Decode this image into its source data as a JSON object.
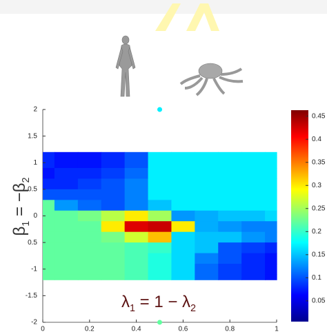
{
  "chart_data": {
    "type": "heatmap",
    "x_label": [
      "λ",
      "1",
      " = 1 − λ",
      "2"
    ],
    "y_label": [
      "β",
      "1",
      " = −β",
      "2"
    ],
    "xlim": [
      0,
      1
    ],
    "ylim": [
      -2,
      2
    ],
    "xticks": [
      0,
      0.2,
      0.4,
      0.6,
      0.8,
      1
    ],
    "yticks": [
      2,
      1.5,
      1,
      {
        "value": 0.5,
        "label": "0.5"
      },
      0,
      {
        "value": -0.5,
        "label": "0.5"
      },
      -1,
      -1.5,
      -2
    ],
    "colormap": "jet",
    "clim": [
      0.005,
      0.463
    ],
    "cticks": [
      0.05,
      0.1,
      0.15,
      0.2,
      0.25,
      0.3,
      0.35,
      0.4,
      0.45
    ],
    "x": [
      0,
      0.1,
      0.2,
      0.3,
      0.4,
      0.5,
      0.6,
      0.7,
      0.8,
      0.9,
      1
    ],
    "y": [
      1.2,
      1.0,
      0.8,
      0.6,
      0.4,
      0.2,
      0,
      -0.2,
      -0.4,
      -0.6,
      -0.8,
      -1.0,
      -1.2
    ],
    "z": [
      [
        0.08,
        0.07,
        0.07,
        0.08,
        0.1,
        0.17,
        0.17,
        0.17,
        0.17,
        0.17,
        0.17
      ],
      [
        0.08,
        0.07,
        0.07,
        0.08,
        0.1,
        0.17,
        0.17,
        0.17,
        0.17,
        0.17,
        0.17
      ],
      [
        0.07,
        0.08,
        0.08,
        0.09,
        0.11,
        0.17,
        0.17,
        0.17,
        0.17,
        0.17,
        0.17
      ],
      [
        0.08,
        0.08,
        0.09,
        0.1,
        0.12,
        0.17,
        0.17,
        0.17,
        0.17,
        0.17,
        0.17
      ],
      [
        0.1,
        0.1,
        0.1,
        0.1,
        0.12,
        0.17,
        0.17,
        0.17,
        0.17,
        0.17,
        0.17
      ],
      [
        0.22,
        0.13,
        0.11,
        0.1,
        0.12,
        0.15,
        0.17,
        0.17,
        0.17,
        0.17,
        0.17
      ],
      [
        0.22,
        0.22,
        0.23,
        0.26,
        0.3,
        0.25,
        0.13,
        0.14,
        0.15,
        0.15,
        0.16
      ],
      [
        0.22,
        0.22,
        0.22,
        0.3,
        0.42,
        0.43,
        0.3,
        0.14,
        0.13,
        0.12,
        0.12
      ],
      [
        0.22,
        0.22,
        0.22,
        0.23,
        0.27,
        0.32,
        0.16,
        0.15,
        0.15,
        0.13,
        0.12
      ],
      [
        0.22,
        0.22,
        0.22,
        0.22,
        0.21,
        0.2,
        0.16,
        0.15,
        0.1,
        0.09,
        0.08
      ],
      [
        0.22,
        0.22,
        0.22,
        0.22,
        0.21,
        0.19,
        0.16,
        0.12,
        0.1,
        0.08,
        0.07
      ],
      [
        0.22,
        0.22,
        0.22,
        0.22,
        0.21,
        0.19,
        0.16,
        0.11,
        0.09,
        0.08,
        0.07
      ],
      [
        0.22,
        0.22,
        0.22,
        0.22,
        0.21,
        0.19,
        0.16,
        0.11,
        0.09,
        0.08,
        0.07
      ]
    ],
    "markers": [
      {
        "x": 0.5,
        "y": 2,
        "value": 0.17
      },
      {
        "x": 0.5,
        "y": -2,
        "value": 0.22
      }
    ]
  }
}
